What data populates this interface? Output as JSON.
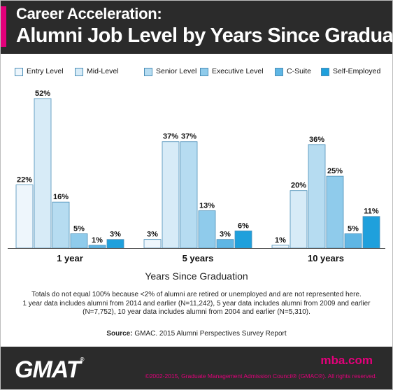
{
  "header": {
    "title_line1": "Career Acceleration:",
    "title_line2": "Alumni Job Level by Years Since Graduation"
  },
  "chart_data": {
    "type": "bar",
    "categories": [
      "1 year",
      "5 years",
      "10 years"
    ],
    "series": [
      {
        "name": "Entry Level",
        "values": [
          22,
          3,
          1
        ],
        "color": "#eef6fc"
      },
      {
        "name": "Mid-Level",
        "values": [
          52,
          37,
          20
        ],
        "color": "#d7ebf7"
      },
      {
        "name": "Senior  Level",
        "values": [
          16,
          37,
          36
        ],
        "color": "#b6dcf1"
      },
      {
        "name": "Executive Level",
        "values": [
          5,
          13,
          25
        ],
        "color": "#8fcbeb"
      },
      {
        "name": "C-Suite",
        "values": [
          1,
          3,
          5
        ],
        "color": "#5fb6e4"
      },
      {
        "name": "Self-Employed",
        "values": [
          3,
          6,
          11
        ],
        "color": "#1fa0dc"
      }
    ],
    "value_suffix": "%",
    "xlabel": "Years Since Graduation",
    "ylabel": "",
    "ylim": [
      0,
      52
    ],
    "grid": false,
    "legend": "top"
  },
  "notes": {
    "line1": "Totals do not equal 100% because <2% of alumni are retired or unemployed and are not represented here.",
    "line2": "1 year data includes alumni from 2014 and earlier (N=11,242), 5 year data includes alumni from 2009 and earlier",
    "line3": "(N=7,752), 10 year data includes alumni from 2004 and earlier (N=5,310)."
  },
  "source": {
    "label": "Source:",
    "text": "GMAC. 2015 Alumni Perspectives Survey Report"
  },
  "footer": {
    "logo": "GMAT",
    "logo_mark": "®",
    "site": "mba.com",
    "copyright": "©2002-2015, Graduate Management Admission Council® (GMAC®). All rights reserved."
  }
}
